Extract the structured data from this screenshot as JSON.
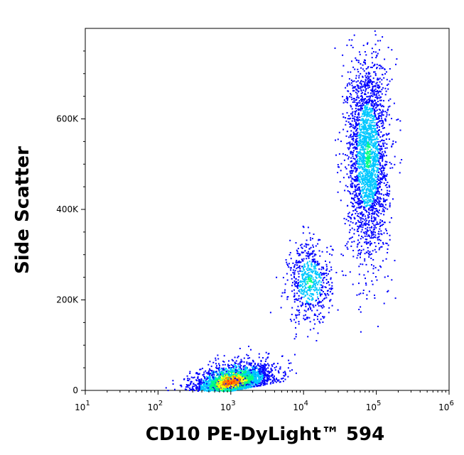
{
  "chart_data": {
    "type": "scatter",
    "subtype": "flow-cytometry density dot plot",
    "xlabel": "CD10 PE-DyLight™ 594",
    "ylabel": "Side Scatter",
    "x_scale": "log",
    "xlim": [
      10,
      1000000
    ],
    "x_ticks": [
      {
        "value": 10,
        "base": "10",
        "exp": "1"
      },
      {
        "value": 100,
        "base": "10",
        "exp": "2"
      },
      {
        "value": 1000,
        "base": "10",
        "exp": "3"
      },
      {
        "value": 10000,
        "base": "10",
        "exp": "4"
      },
      {
        "value": 100000,
        "base": "10",
        "exp": "5"
      },
      {
        "value": 1000000,
        "base": "10",
        "exp": "6"
      }
    ],
    "y_scale": "linear",
    "ylim": [
      0,
      800000
    ],
    "y_ticks": [
      {
        "value": 0,
        "label": "0"
      },
      {
        "value": 200000,
        "label": "200K"
      },
      {
        "value": 400000,
        "label": "400K"
      },
      {
        "value": 600000,
        "label": "600K"
      }
    ],
    "grid": false,
    "color_map": [
      "#0000ff",
      "#00c8ff",
      "#00ff80",
      "#ffff00",
      "#ff8000",
      "#ff0000"
    ],
    "populations": [
      {
        "x_center": 1000,
        "y_center": 25000,
        "count": 2800,
        "x_spread_log": 0.28,
        "y_spread": 22000,
        "density": "high"
      },
      {
        "x_center": 12000,
        "y_center": 240000,
        "count": 650,
        "x_spread_log": 0.15,
        "y_spread": 45000,
        "density": "medium"
      },
      {
        "x_center": 75000,
        "y_center": 520000,
        "count": 2600,
        "x_spread_log": 0.14,
        "y_spread": 110000,
        "density": "medium"
      }
    ]
  }
}
